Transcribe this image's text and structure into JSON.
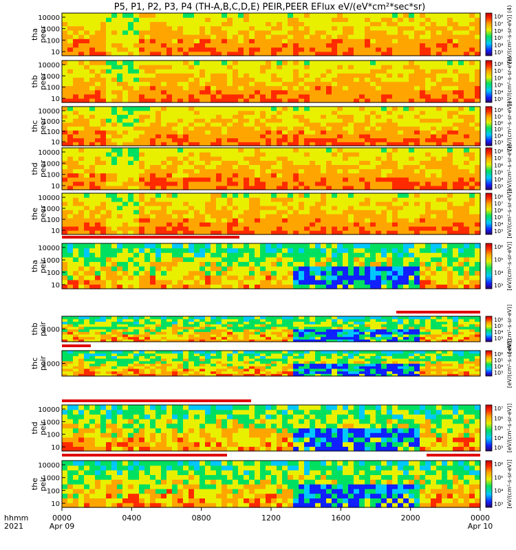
{
  "title": "P5, P1, P2, P3, P4 (TH-A,B,C,D,E) PEIR,PEER EFlux eV/(eV*cm²*sec*sr)",
  "chart_data": {
    "type": "heatmap",
    "title": "P5, P1, P2, P3, P4 (TH-A,B,C,D,E) PEIR,PEER EFlux eV/(eV*cm²*sec*sr)",
    "x_axis": {
      "row_label_1": "hhmm",
      "row_label_2": "2021",
      "ticks": [
        "0000",
        "0400",
        "0800",
        "1200",
        "1600",
        "2000",
        "0000"
      ],
      "dates": [
        "Apr 09",
        "Apr 10"
      ],
      "range_hours": [
        0,
        24
      ]
    },
    "colorbar_unit": "eV/(cm²-s-sr-eV)",
    "panels": [
      {
        "probe": "tha",
        "species": "peer",
        "y_ticks": [
          "10",
          "100",
          "1000",
          "10000"
        ],
        "cbar_ticks": [
          "10³",
          "10⁴",
          "10⁵",
          "10⁶",
          "10⁷",
          "10⁸"
        ],
        "cbar_unit": "[eV/(cm²-s-sr-eV)] (4)"
      },
      {
        "probe": "thb",
        "species": "peer",
        "y_ticks": [
          "10",
          "100",
          "1000",
          "10000"
        ],
        "cbar_ticks": [
          "10³",
          "10⁴",
          "10⁵",
          "10⁶",
          "10⁷",
          "10⁸"
        ],
        "cbar_unit": "[eV/(cm²-s-sr-eV)]"
      },
      {
        "probe": "thc",
        "species": "peer",
        "y_ticks": [
          "10",
          "100",
          "1000",
          "10000"
        ],
        "cbar_ticks": [
          "10³",
          "10⁴",
          "10⁵",
          "10⁶",
          "10⁷",
          "10⁸"
        ],
        "cbar_unit": "[eV/(cm²-s-sr-eV)]"
      },
      {
        "probe": "thd",
        "species": "peer",
        "y_ticks": [
          "10",
          "100",
          "1000",
          "10000"
        ],
        "cbar_ticks": [
          "10³",
          "10⁴",
          "10⁵",
          "10⁶",
          "10⁷",
          "10⁸"
        ],
        "cbar_unit": "[eV/(cm²-s-sr-eV)]"
      },
      {
        "probe": "the",
        "species": "peer",
        "y_ticks": [
          "10",
          "100",
          "1000",
          "10000"
        ],
        "cbar_ticks": [
          "10³",
          "10⁴",
          "10⁵",
          "10⁶",
          "10⁷",
          "10⁸"
        ],
        "cbar_unit": "[eV/(cm²-s-sr-eV)]"
      },
      {
        "probe": "tha",
        "species": "peir",
        "y_ticks": [
          "10",
          "100",
          "1000",
          "10000"
        ],
        "cbar_ticks": [
          "10³",
          "10⁴",
          "10⁵",
          "10⁶"
        ],
        "cbar_unit": "[eV/(cm²-s-sr-eV)]"
      },
      {
        "probe": "thb",
        "species": "peir",
        "y_ticks": [
          "1000"
        ],
        "cbar_ticks": [
          "10³",
          "10⁴",
          "10⁵",
          "10⁶"
        ],
        "cbar_unit": "[eV/(cm²-s-sr-eV)]"
      },
      {
        "probe": "thc",
        "species": "peir",
        "y_ticks": [
          "1000"
        ],
        "cbar_ticks": [
          "10³",
          "10⁴",
          "10⁵",
          "10⁶"
        ],
        "cbar_unit": "[eV/(cm²-s-sr-eV)]"
      },
      {
        "probe": "thd",
        "species": "peir",
        "y_ticks": [
          "10",
          "100",
          "1000",
          "10000"
        ],
        "cbar_ticks": [
          "10³",
          "10⁴",
          "10⁵",
          "10⁶",
          "10⁷"
        ],
        "cbar_unit": "[eV/(cm²-s-sr-eV)]"
      },
      {
        "probe": "the",
        "species": "peir",
        "y_ticks": [
          "10",
          "100",
          "1000",
          "10000"
        ],
        "cbar_ticks": [
          "10³",
          "10⁴",
          "10⁵",
          "10⁶"
        ],
        "cbar_unit": "[eV/(cm²-s-sr-eV)]"
      }
    ]
  }
}
